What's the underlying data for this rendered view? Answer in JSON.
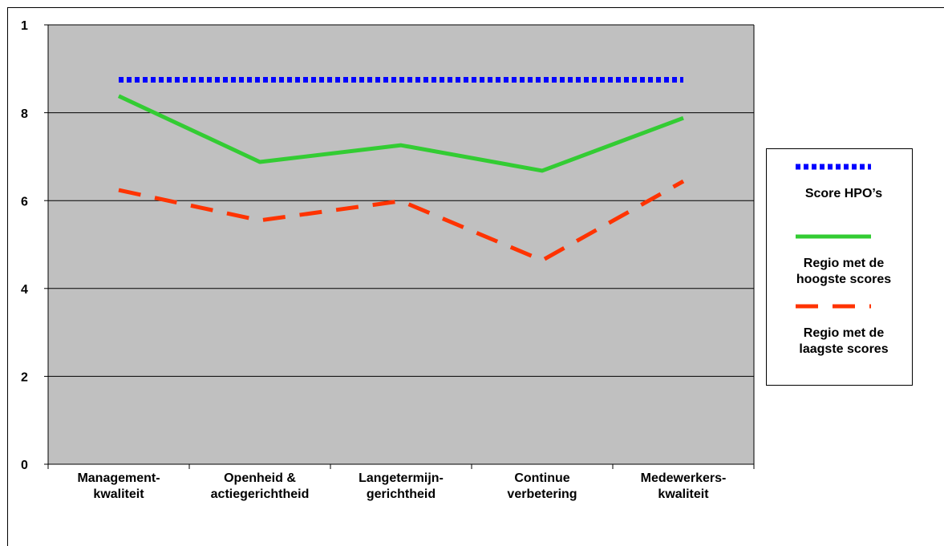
{
  "chart_data": {
    "type": "line",
    "categories": [
      "Management-kwaliteit",
      "Openheid & actiegerichtheid",
      "Langetermijn-gerichtheid",
      "Continue verbetering",
      "Medewerkers-kwaliteit"
    ],
    "series": [
      {
        "name": "Score HPO’s",
        "color": "#0000ff",
        "dash": "dotted",
        "values": [
          8.75,
          8.75,
          8.75,
          8.75,
          8.75
        ]
      },
      {
        "name": "Regio met de hoogste scores",
        "color": "#33cc33",
        "dash": "solid",
        "values": [
          8.38,
          6.88,
          7.26,
          6.68,
          7.88
        ]
      },
      {
        "name": "Regio met de laagste scores",
        "color": "#ff3300",
        "dash": "dashed",
        "values": [
          6.24,
          5.55,
          5.99,
          4.64,
          6.44
        ]
      }
    ],
    "ylim": [
      0,
      10
    ],
    "yticks": [
      0,
      2,
      4,
      6,
      8,
      {
        "value": 10,
        "label": "1"
      }
    ],
    "grid": true,
    "plot_background": "#c0c0c0",
    "legend": "right"
  }
}
